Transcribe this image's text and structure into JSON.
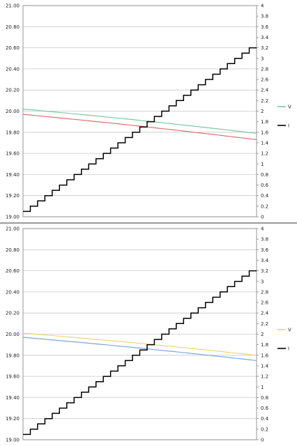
{
  "chart_data": [
    {
      "type": "line",
      "left_axis": {
        "ylim": [
          19.0,
          21.0
        ],
        "ticks": [
          "19.00",
          "19.20",
          "19.40",
          "19.60",
          "19.80",
          "20.00",
          "20.20",
          "20.40",
          "20.60",
          "20.80",
          "21.00"
        ]
      },
      "right_axis": {
        "ylim": [
          0,
          4
        ],
        "ticks": [
          "0",
          "0.2",
          "0.4",
          "0.6",
          "0.8",
          "1",
          "1.2",
          "1.4",
          "1.6",
          "1.8",
          "2",
          "2.2",
          "2.4",
          "2.6",
          "2.8",
          "3",
          "3.2",
          "3.4",
          "3.6",
          "3.8",
          "4"
        ]
      },
      "grid": true,
      "legend": "right",
      "legend_entries": [
        {
          "name": "V",
          "color": "#7dc9a0"
        },
        {
          "name": "I",
          "color": "#000000"
        }
      ],
      "series": [
        {
          "name": "V",
          "axis": "left",
          "color": "#7dc9a0",
          "start": 20.02,
          "end": 19.79
        },
        {
          "name": "",
          "axis": "left",
          "color": "#e07070",
          "start": 19.97,
          "end": 19.73
        },
        {
          "name": "I",
          "axis": "right",
          "color": "#000000",
          "type": "step",
          "start": 0.1,
          "step": 0.1,
          "steps": 32
        }
      ]
    },
    {
      "type": "line",
      "left_axis": {
        "ylim": [
          19.0,
          21.0
        ],
        "ticks": [
          "19.00",
          "19.20",
          "19.40",
          "19.60",
          "19.80",
          "20.00",
          "20.20",
          "20.40",
          "20.60",
          "20.80",
          "21.00"
        ]
      },
      "right_axis": {
        "ylim": [
          0,
          4
        ],
        "ticks": [
          "0",
          "0.2",
          "0.4",
          "0.6",
          "0.8",
          "1",
          "1.2",
          "1.4",
          "1.6",
          "1.8",
          "2",
          "2.2",
          "2.4",
          "2.6",
          "2.8",
          "3",
          "3.2",
          "3.4",
          "3.6",
          "3.8",
          "4"
        ]
      },
      "grid": true,
      "legend": "right",
      "legend_entries": [
        {
          "name": "V",
          "color": "#f2d47a"
        },
        {
          "name": "I",
          "color": "#000000"
        }
      ],
      "series": [
        {
          "name": "V",
          "axis": "left",
          "color": "#f2d47a",
          "start": 20.01,
          "end": 19.8
        },
        {
          "name": "",
          "axis": "left",
          "color": "#7aa8dd",
          "start": 19.97,
          "end": 19.75
        },
        {
          "name": "I",
          "axis": "right",
          "color": "#000000",
          "type": "step",
          "start": 0.1,
          "step": 0.1,
          "steps": 32
        }
      ]
    }
  ]
}
